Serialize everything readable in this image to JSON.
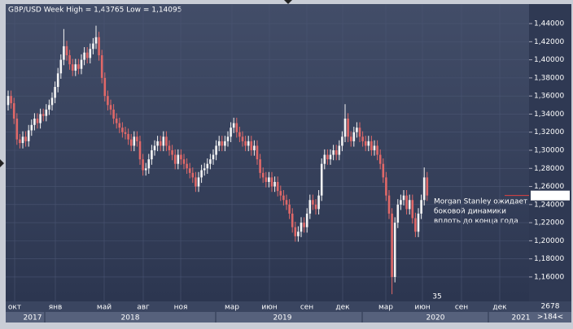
{
  "chart_data": {
    "type": "candlestick",
    "title": "GBP/USD Week High = 1,43765 Low = 1,14095",
    "up_color": "#f4f4f4",
    "down_color": "#e06868",
    "grid": true,
    "ylim": [
      1.133,
      1.4616
    ],
    "yticks": [
      {
        "value": 1.44,
        "label": "1,44000"
      },
      {
        "value": 1.42,
        "label": "1,42000"
      },
      {
        "value": 1.4,
        "label": "1,40000"
      },
      {
        "value": 1.38,
        "label": "1,38000"
      },
      {
        "value": 1.36,
        "label": "1,36000"
      },
      {
        "value": 1.34,
        "label": "1,34000"
      },
      {
        "value": 1.32,
        "label": "1,32000"
      },
      {
        "value": 1.3,
        "label": "1,30000"
      },
      {
        "value": 1.28,
        "label": "1,28000"
      },
      {
        "value": 1.26,
        "label": "1,26000"
      },
      {
        "value": 1.24,
        "label": "1,24000"
      },
      {
        "value": 1.22,
        "label": "1,22000"
      },
      {
        "value": 1.2,
        "label": "1,20000"
      },
      {
        "value": 1.18,
        "label": "1,18000"
      },
      {
        "value": 1.16,
        "label": "1,16000"
      }
    ],
    "last_price": {
      "value": 1.25,
      "label": "1,25000"
    },
    "annotation": [
      "Morgan Stanley ожидает",
      "боковой динамики",
      "вплоть до конца года"
    ],
    "x_labels": [
      "окт",
      "янв",
      "май",
      "авг",
      "ноя",
      "мар",
      "июн",
      "сен",
      "дек",
      "мар",
      "июн",
      "сен",
      "дек"
    ],
    "year_labels": [
      "2017",
      "2018",
      "2019",
      "2020",
      "2021"
    ],
    "counter": "35",
    "footer_top": "2678",
    "footer_bottom": ">184<",
    "open": [
      1.35,
      1.36,
      1.352,
      1.335,
      1.312,
      1.308,
      1.315,
      1.31,
      1.322,
      1.328,
      1.335,
      1.33,
      1.34,
      1.338,
      1.345,
      1.35,
      1.358,
      1.37,
      1.385,
      1.4,
      1.415,
      1.405,
      1.395,
      1.388,
      1.395,
      1.39,
      1.4,
      1.408,
      1.402,
      1.412,
      1.418,
      1.425,
      1.405,
      1.38,
      1.36,
      1.35,
      1.345,
      1.335,
      1.33,
      1.325,
      1.32,
      1.318,
      1.312,
      1.305,
      1.315,
      1.31,
      1.29,
      1.278,
      1.28,
      1.29,
      1.3,
      1.305,
      1.31,
      1.305,
      1.315,
      1.305,
      1.3,
      1.295,
      1.285,
      1.295,
      1.29,
      1.285,
      1.28,
      1.275,
      1.27,
      1.26,
      1.27,
      1.278,
      1.28,
      1.285,
      1.29,
      1.295,
      1.305,
      1.31,
      1.305,
      1.31,
      1.315,
      1.325,
      1.33,
      1.32,
      1.315,
      1.31,
      1.305,
      1.31,
      1.3,
      1.305,
      1.29,
      1.275,
      1.27,
      1.265,
      1.27,
      1.26,
      1.265,
      1.255,
      1.25,
      1.245,
      1.24,
      1.23,
      1.215,
      1.205,
      1.21,
      1.22,
      1.215,
      1.23,
      1.245,
      1.24,
      1.235,
      1.25,
      1.285,
      1.295,
      1.29,
      1.295,
      1.3,
      1.295,
      1.305,
      1.315,
      1.335,
      1.315,
      1.31,
      1.32,
      1.325,
      1.315,
      1.31,
      1.305,
      1.31,
      1.3,
      1.305,
      1.295,
      1.285,
      1.27,
      1.25,
      1.23,
      1.16,
      1.22,
      1.24,
      1.245,
      1.25,
      1.235,
      1.245,
      1.225,
      1.21,
      1.23,
      1.245,
      1.27
    ],
    "high": [
      1.366,
      1.366,
      1.358,
      1.341,
      1.318,
      1.321,
      1.321,
      1.328,
      1.334,
      1.341,
      1.341,
      1.346,
      1.346,
      1.351,
      1.356,
      1.364,
      1.376,
      1.391,
      1.406,
      1.434,
      1.421,
      1.411,
      1.401,
      1.401,
      1.401,
      1.406,
      1.414,
      1.414,
      1.418,
      1.424,
      1.43765,
      1.431,
      1.411,
      1.386,
      1.366,
      1.356,
      1.351,
      1.341,
      1.336,
      1.331,
      1.326,
      1.324,
      1.318,
      1.321,
      1.321,
      1.316,
      1.296,
      1.286,
      1.296,
      1.306,
      1.311,
      1.316,
      1.316,
      1.321,
      1.321,
      1.311,
      1.306,
      1.301,
      1.301,
      1.301,
      1.296,
      1.291,
      1.286,
      1.281,
      1.276,
      1.276,
      1.284,
      1.286,
      1.291,
      1.296,
      1.301,
      1.311,
      1.316,
      1.316,
      1.316,
      1.321,
      1.331,
      1.336,
      1.336,
      1.326,
      1.321,
      1.316,
      1.316,
      1.316,
      1.311,
      1.311,
      1.296,
      1.281,
      1.276,
      1.276,
      1.276,
      1.271,
      1.271,
      1.261,
      1.256,
      1.251,
      1.246,
      1.236,
      1.221,
      1.216,
      1.226,
      1.226,
      1.236,
      1.251,
      1.251,
      1.246,
      1.256,
      1.291,
      1.301,
      1.301,
      1.301,
      1.306,
      1.306,
      1.311,
      1.321,
      1.351,
      1.341,
      1.321,
      1.326,
      1.331,
      1.331,
      1.321,
      1.316,
      1.316,
      1.316,
      1.311,
      1.311,
      1.301,
      1.291,
      1.276,
      1.256,
      1.236,
      1.226,
      1.246,
      1.251,
      1.256,
      1.256,
      1.251,
      1.251,
      1.231,
      1.236,
      1.251,
      1.281,
      1.276
    ],
    "low": [
      1.344,
      1.346,
      1.329,
      1.306,
      1.302,
      1.302,
      1.304,
      1.304,
      1.316,
      1.322,
      1.324,
      1.324,
      1.332,
      1.332,
      1.339,
      1.344,
      1.352,
      1.364,
      1.379,
      1.394,
      1.399,
      1.389,
      1.382,
      1.382,
      1.384,
      1.384,
      1.394,
      1.396,
      1.396,
      1.406,
      1.412,
      1.399,
      1.374,
      1.354,
      1.344,
      1.339,
      1.329,
      1.324,
      1.319,
      1.314,
      1.312,
      1.306,
      1.299,
      1.299,
      1.304,
      1.284,
      1.272,
      1.272,
      1.274,
      1.284,
      1.294,
      1.299,
      1.299,
      1.299,
      1.299,
      1.294,
      1.289,
      1.279,
      1.279,
      1.284,
      1.279,
      1.274,
      1.269,
      1.264,
      1.254,
      1.254,
      1.264,
      1.272,
      1.274,
      1.279,
      1.284,
      1.289,
      1.299,
      1.299,
      1.299,
      1.304,
      1.309,
      1.319,
      1.314,
      1.309,
      1.304,
      1.299,
      1.299,
      1.294,
      1.294,
      1.284,
      1.269,
      1.264,
      1.259,
      1.259,
      1.254,
      1.254,
      1.249,
      1.244,
      1.239,
      1.234,
      1.224,
      1.209,
      1.199,
      1.199,
      1.204,
      1.209,
      1.209,
      1.224,
      1.234,
      1.229,
      1.229,
      1.244,
      1.279,
      1.284,
      1.284,
      1.289,
      1.289,
      1.289,
      1.299,
      1.309,
      1.309,
      1.304,
      1.304,
      1.314,
      1.309,
      1.304,
      1.299,
      1.299,
      1.294,
      1.294,
      1.289,
      1.279,
      1.264,
      1.244,
      1.224,
      1.14095,
      1.154,
      1.214,
      1.234,
      1.239,
      1.229,
      1.229,
      1.219,
      1.204,
      1.204,
      1.224,
      1.239,
      1.244
    ],
    "close": [
      1.36,
      1.352,
      1.335,
      1.312,
      1.308,
      1.315,
      1.31,
      1.322,
      1.328,
      1.335,
      1.33,
      1.34,
      1.338,
      1.345,
      1.35,
      1.358,
      1.37,
      1.385,
      1.4,
      1.415,
      1.405,
      1.395,
      1.388,
      1.395,
      1.39,
      1.4,
      1.408,
      1.402,
      1.412,
      1.418,
      1.425,
      1.405,
      1.38,
      1.36,
      1.35,
      1.345,
      1.335,
      1.33,
      1.325,
      1.32,
      1.318,
      1.312,
      1.305,
      1.315,
      1.31,
      1.29,
      1.278,
      1.28,
      1.29,
      1.3,
      1.305,
      1.31,
      1.305,
      1.315,
      1.305,
      1.3,
      1.295,
      1.285,
      1.295,
      1.29,
      1.285,
      1.28,
      1.275,
      1.27,
      1.26,
      1.27,
      1.278,
      1.28,
      1.285,
      1.29,
      1.295,
      1.305,
      1.31,
      1.305,
      1.31,
      1.315,
      1.325,
      1.33,
      1.32,
      1.315,
      1.31,
      1.305,
      1.31,
      1.3,
      1.305,
      1.29,
      1.275,
      1.27,
      1.265,
      1.27,
      1.26,
      1.265,
      1.255,
      1.25,
      1.245,
      1.24,
      1.23,
      1.215,
      1.205,
      1.21,
      1.22,
      1.215,
      1.23,
      1.245,
      1.24,
      1.235,
      1.25,
      1.285,
      1.295,
      1.29,
      1.295,
      1.3,
      1.295,
      1.305,
      1.315,
      1.335,
      1.315,
      1.31,
      1.32,
      1.325,
      1.315,
      1.31,
      1.305,
      1.31,
      1.3,
      1.305,
      1.295,
      1.285,
      1.27,
      1.25,
      1.23,
      1.16,
      1.22,
      1.24,
      1.245,
      1.25,
      1.235,
      1.245,
      1.225,
      1.21,
      1.23,
      1.245,
      1.27,
      1.25
    ]
  }
}
